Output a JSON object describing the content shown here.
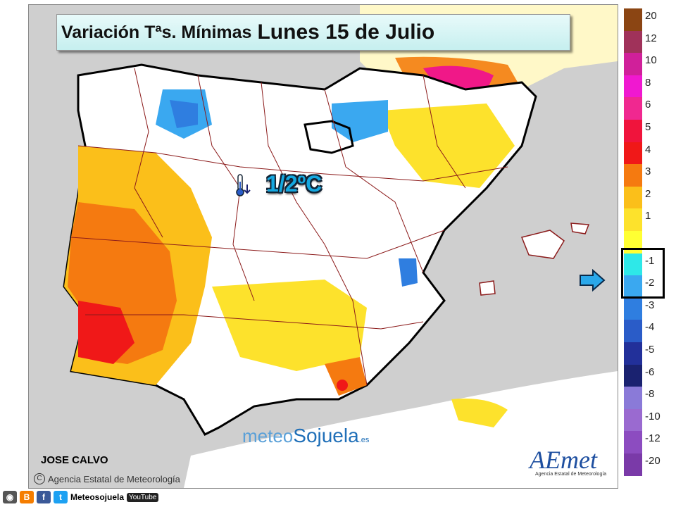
{
  "title": {
    "part1": "Variación Tªs. Mínimas",
    "part2": "Lunes 15 de Julio"
  },
  "value_label": "1/2ºC",
  "author": "JOSE CALVO",
  "agency_credit": "Agencia Estatal de Meteorología",
  "watermark": {
    "part1": "meteo",
    "part2": "Sojuela",
    "part3": ".es"
  },
  "aemet_logo": {
    "name": "AEmet",
    "sub": "Agencia Estatal de Meteorología"
  },
  "legend": {
    "items": [
      {
        "label": "20",
        "color": "#8b4513"
      },
      {
        "label": "12",
        "color": "#a0325a"
      },
      {
        "label": "10",
        "color": "#d0209a"
      },
      {
        "label": "8",
        "color": "#f018d0"
      },
      {
        "label": "6",
        "color": "#f02890"
      },
      {
        "label": "5",
        "color": "#f0143c"
      },
      {
        "label": "4",
        "color": "#f01818"
      },
      {
        "label": "3",
        "color": "#f57a10"
      },
      {
        "label": "2",
        "color": "#fbbf1a"
      },
      {
        "label": "1",
        "color": "#fde22c"
      },
      {
        "label": "",
        "color": "#ffff33"
      },
      {
        "label": "-1",
        "color": "#2ee8e8"
      },
      {
        "label": "-2",
        "color": "#3aa8f0"
      },
      {
        "label": "-3",
        "color": "#2f7ee0"
      },
      {
        "label": "-4",
        "color": "#2a5cc8"
      },
      {
        "label": "-5",
        "color": "#22309a"
      },
      {
        "label": "-6",
        "color": "#1a2270"
      },
      {
        "label": "-8",
        "color": "#8a7ad8"
      },
      {
        "label": "-10",
        "color": "#9a6ad0"
      },
      {
        "label": "-12",
        "color": "#8c4cc0"
      },
      {
        "label": "-20",
        "color": "#7a3aa8"
      }
    ]
  },
  "footer": {
    "name": "Meteosojuela",
    "youtube": "YouTube"
  },
  "colors": {
    "sea": "#cfcfcf",
    "land": "#ffffff",
    "border": "#8b1a1a"
  }
}
